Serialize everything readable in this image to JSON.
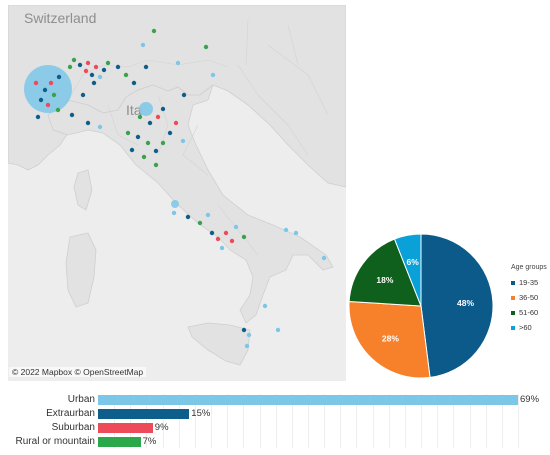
{
  "map": {
    "labels": {
      "country_1": "Switzerland",
      "country_2": "Ita"
    },
    "attribution": "© 2022 Mapbox © OpenStreetMap",
    "colors": {
      "land": "#e2e2e2",
      "sea": "#ededed",
      "borders": "#cfcfcf",
      "labels": "#8e8e8e"
    },
    "marker_colors": [
      "#0e5e8c",
      "#3aa24a",
      "#ed4a5a",
      "#7cc7e8"
    ]
  },
  "chart_data": [
    {
      "type": "pie",
      "legend_title": "Age groups",
      "legend_position": "right",
      "slices": [
        {
          "label": "19-35",
          "value": 48,
          "display": "48%",
          "color": "#0b5a8a"
        },
        {
          "label": "36-50",
          "value": 28,
          "display": "28%",
          "color": "#f7812a"
        },
        {
          "label": "51-60",
          "value": 18,
          "display": "18%",
          "color": "#0f5f1d"
        },
        {
          "label": ">60",
          "value": 6,
          "display": "6%",
          "color": "#0aa1d8"
        }
      ]
    },
    {
      "type": "bar",
      "orientation": "horizontal",
      "categories": [
        "Urban",
        "Extraurban",
        "Suburban",
        "Rural or mountain"
      ],
      "values": [
        69,
        15,
        9,
        7
      ],
      "labels": [
        "69%",
        "15%",
        "9%",
        "7%"
      ],
      "colors": [
        "#7cc7e8",
        "#0e5e8c",
        "#ed4a5a",
        "#2aa84a"
      ],
      "xlim": [
        0,
        69
      ],
      "grid": true
    }
  ]
}
